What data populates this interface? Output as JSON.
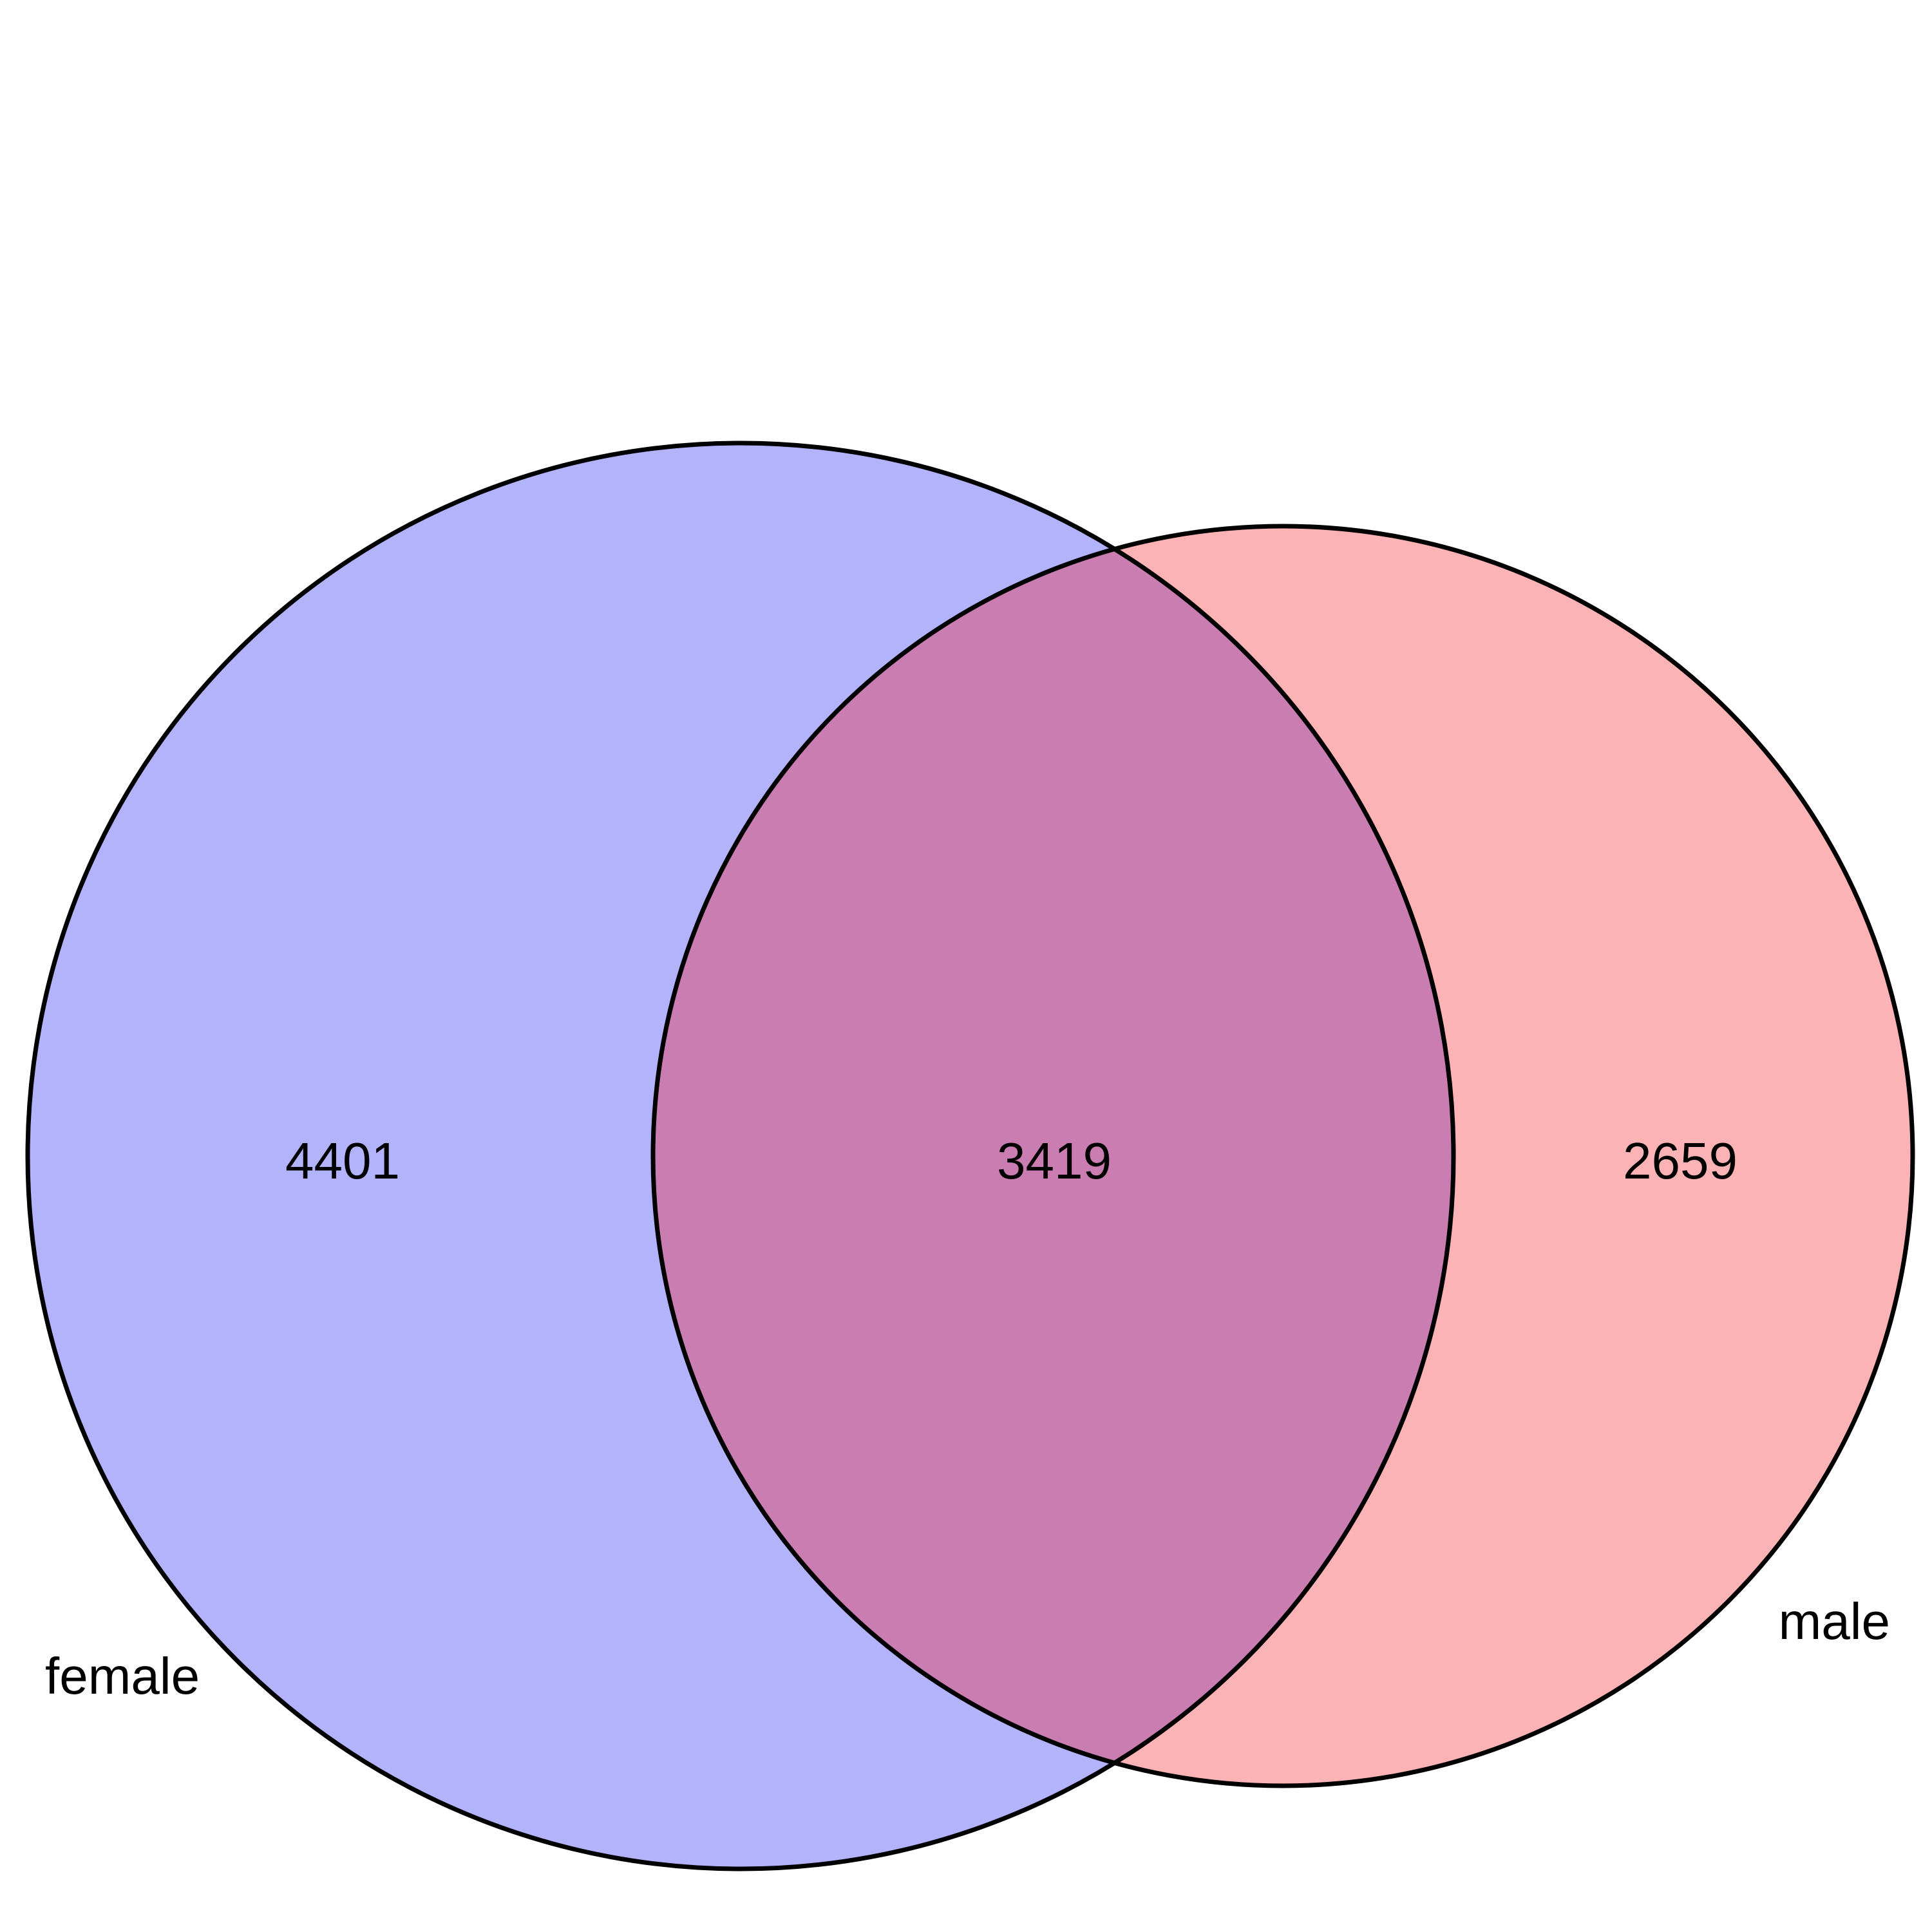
{
  "venn": {
    "sets": [
      {
        "label": "female",
        "color": "#b3b3fc"
      },
      {
        "label": "male",
        "color": "#fcb3b5"
      }
    ],
    "overlap_color": "#c97db1",
    "outline_color": "#000000",
    "counts": {
      "female_only": "4401",
      "both": "3419",
      "male_only": "2659"
    }
  }
}
